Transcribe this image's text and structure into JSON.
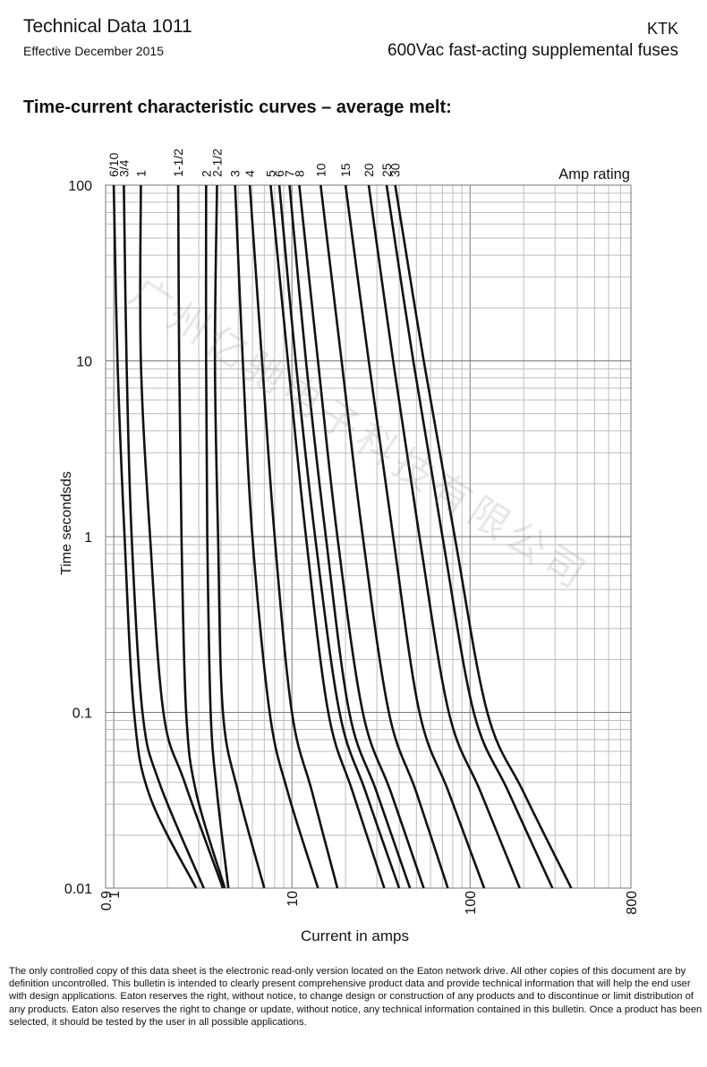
{
  "header": {
    "left_title": "Technical Data 1011",
    "left_subtitle": "Effective December 2015",
    "right_title": "KTK",
    "right_subtitle": "600Vac fast-acting supplemental fuses"
  },
  "section_title": "Time-current characteristic curves – average melt:",
  "chart_data": {
    "type": "line",
    "title": "",
    "xlabel": "Current in amps",
    "ylabel": "Time secondsds",
    "x_scale": "log",
    "y_scale": "log",
    "xlim": [
      0.9,
      800
    ],
    "ylim": [
      0.01,
      100
    ],
    "grid": true,
    "x_ticks": [
      {
        "value": 0.9,
        "label": "0.9"
      },
      {
        "value": 1,
        "label": "1"
      },
      {
        "value": 10,
        "label": "10"
      },
      {
        "value": 100,
        "label": "100"
      },
      {
        "value": 800,
        "label": "800"
      }
    ],
    "y_ticks": [
      {
        "value": 100,
        "label": "100"
      },
      {
        "value": 10,
        "label": "10"
      },
      {
        "value": 1,
        "label": "1"
      },
      {
        "value": 0.1,
        "label": "0.1"
      },
      {
        "value": 0.01,
        "label": "0.01"
      }
    ],
    "legend_title": "Amp rating",
    "series": [
      {
        "name": "6/10",
        "points": [
          [
            1.0,
            100
          ],
          [
            1.05,
            10
          ],
          [
            1.15,
            1
          ],
          [
            1.3,
            0.1
          ],
          [
            1.6,
            0.033
          ],
          [
            2.9,
            0.01
          ]
        ]
      },
      {
        "name": "3/4",
        "points": [
          [
            1.14,
            100
          ],
          [
            1.18,
            10
          ],
          [
            1.26,
            1
          ],
          [
            1.45,
            0.1
          ],
          [
            1.8,
            0.04
          ],
          [
            3.2,
            0.01
          ]
        ]
      },
      {
        "name": "1",
        "points": [
          [
            1.42,
            100
          ],
          [
            1.42,
            10
          ],
          [
            1.6,
            1
          ],
          [
            1.9,
            0.1
          ],
          [
            2.5,
            0.04
          ],
          [
            4.1,
            0.01
          ]
        ]
      },
      {
        "name": "1-1/2",
        "points": [
          [
            2.3,
            100
          ],
          [
            2.33,
            10
          ],
          [
            2.4,
            1
          ],
          [
            2.55,
            0.1
          ],
          [
            2.9,
            0.035
          ],
          [
            4.2,
            0.01
          ]
        ]
      },
      {
        "name": "2",
        "points": [
          [
            3.3,
            100
          ],
          [
            3.3,
            10
          ],
          [
            3.35,
            1
          ],
          [
            3.5,
            0.1
          ],
          [
            3.8,
            0.035
          ],
          [
            4.4,
            0.01
          ]
        ]
      },
      {
        "name": "2-1/2",
        "points": [
          [
            3.8,
            100
          ],
          [
            3.7,
            10
          ],
          [
            3.85,
            1
          ],
          [
            4.1,
            0.1
          ],
          [
            5.0,
            0.035
          ],
          [
            7.0,
            0.01
          ]
        ]
      },
      {
        "name": "3",
        "points": [
          [
            4.8,
            100
          ],
          [
            5.3,
            10
          ],
          [
            6.0,
            1
          ],
          [
            7.5,
            0.1
          ],
          [
            9.5,
            0.035
          ],
          [
            14.0,
            0.01
          ]
        ]
      },
      {
        "name": "4",
        "points": [
          [
            5.8,
            100
          ],
          [
            6.8,
            10
          ],
          [
            8.0,
            1
          ],
          [
            10.0,
            0.1
          ],
          [
            13.0,
            0.035
          ],
          [
            18.0,
            0.01
          ]
        ]
      },
      {
        "name": "5",
        "points": [
          [
            7.6,
            100
          ],
          [
            9.5,
            10
          ],
          [
            12.0,
            1
          ],
          [
            16.0,
            0.1
          ],
          [
            22.0,
            0.035
          ],
          [
            33.0,
            0.01
          ]
        ]
      },
      {
        "name": "6",
        "points": [
          [
            8.5,
            100
          ],
          [
            10.5,
            10
          ],
          [
            13.5,
            1
          ],
          [
            18.5,
            0.1
          ],
          [
            26.0,
            0.035
          ],
          [
            40.0,
            0.01
          ]
        ]
      },
      {
        "name": "7",
        "points": [
          [
            9.7,
            100
          ],
          [
            12.0,
            10
          ],
          [
            15.5,
            1
          ],
          [
            21.0,
            0.1
          ],
          [
            30.0,
            0.035
          ],
          [
            46.0,
            0.01
          ]
        ]
      },
      {
        "name": "8",
        "points": [
          [
            11.0,
            100
          ],
          [
            14.0,
            10
          ],
          [
            18.0,
            1
          ],
          [
            25.0,
            0.1
          ],
          [
            36.0,
            0.035
          ],
          [
            55.0,
            0.01
          ]
        ]
      },
      {
        "name": "10",
        "points": [
          [
            14.5,
            100
          ],
          [
            19.0,
            10
          ],
          [
            25.0,
            1
          ],
          [
            35.0,
            0.1
          ],
          [
            50.0,
            0.035
          ],
          [
            75.0,
            0.01
          ]
        ]
      },
      {
        "name": "15",
        "points": [
          [
            20.0,
            100
          ],
          [
            27.0,
            10
          ],
          [
            37.0,
            1
          ],
          [
            52.0,
            0.1
          ],
          [
            76.0,
            0.035
          ],
          [
            120.0,
            0.01
          ]
        ]
      },
      {
        "name": "20",
        "points": [
          [
            27.0,
            100
          ],
          [
            37.0,
            10
          ],
          [
            52.0,
            1
          ],
          [
            76.0,
            0.1
          ],
          [
            115.0,
            0.035
          ],
          [
            190.0,
            0.01
          ]
        ]
      },
      {
        "name": "25",
        "points": [
          [
            34.0,
            100
          ],
          [
            48.0,
            10
          ],
          [
            70.0,
            1
          ],
          [
            105.0,
            0.1
          ],
          [
            165.0,
            0.035
          ],
          [
            290.0,
            0.01
          ]
        ]
      },
      {
        "name": "30",
        "points": [
          [
            38.0,
            100
          ],
          [
            55.0,
            10
          ],
          [
            82.0,
            1
          ],
          [
            125.0,
            0.1
          ],
          [
            200.0,
            0.035
          ],
          [
            370.0,
            0.01
          ]
        ]
      }
    ]
  },
  "footer_text": "The only controlled copy of this data sheet is the electronic read-only version located on the Eaton network drive. All other copies of this document are by definition uncontrolled. This bulletin is intended to clearly present comprehensive product data and provide technical information that will help the end user with design applications. Eaton reserves the right, without notice, to change design or construction of any products and to discontinue or limit distribution of any products. Eaton also reserves the right to change or update, without notice, any technical information  contained in this bulletin. Once a product has been selected, it should be tested by the user in all possible applications.",
  "watermark_text": "广州亿驰电子科技有限公司"
}
